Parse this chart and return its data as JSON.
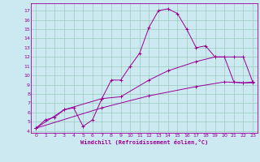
{
  "xlabel": "Windchill (Refroidissement éolien,°C)",
  "bg_color": "#cce8f0",
  "line_color": "#990099",
  "grid_color": "#99ccbb",
  "xlim": [
    -0.5,
    23.5
  ],
  "ylim": [
    3.8,
    17.8
  ],
  "xticks": [
    0,
    1,
    2,
    3,
    4,
    5,
    6,
    7,
    8,
    9,
    10,
    11,
    12,
    13,
    14,
    15,
    16,
    17,
    18,
    19,
    20,
    21,
    22,
    23
  ],
  "yticks": [
    4,
    5,
    6,
    7,
    8,
    9,
    10,
    11,
    12,
    13,
    14,
    15,
    16,
    17
  ],
  "line1_x": [
    0,
    1,
    2,
    3,
    4,
    5,
    6,
    7,
    8,
    9,
    10,
    11,
    12,
    13,
    14,
    15,
    16,
    17,
    18,
    19,
    20,
    21,
    22,
    23
  ],
  "line1_y": [
    4.3,
    5.2,
    5.5,
    6.3,
    6.5,
    4.5,
    5.2,
    7.5,
    9.5,
    9.5,
    11.0,
    12.4,
    15.2,
    17.0,
    17.2,
    16.7,
    15.0,
    13.0,
    13.2,
    12.0,
    12.0,
    9.3,
    9.2,
    9.3
  ],
  "line2_x": [
    0,
    3,
    7,
    9,
    12,
    14,
    17,
    19,
    21,
    22,
    23
  ],
  "line2_y": [
    4.3,
    6.3,
    7.5,
    7.7,
    9.5,
    10.5,
    11.5,
    12.0,
    12.0,
    12.0,
    9.3
  ],
  "line3_x": [
    0,
    7,
    12,
    17,
    20,
    22,
    23
  ],
  "line3_y": [
    4.3,
    6.5,
    7.8,
    8.8,
    9.3,
    9.2,
    9.2
  ]
}
